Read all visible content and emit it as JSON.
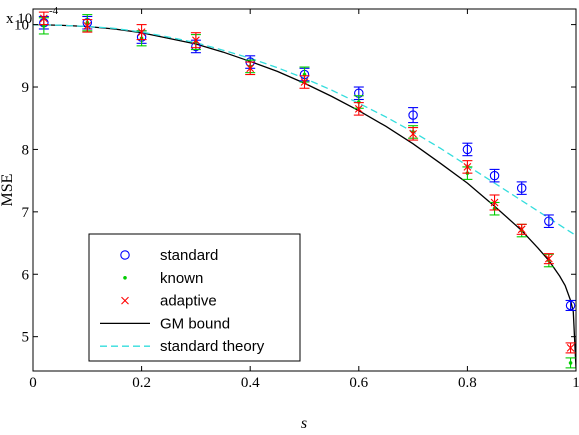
{
  "chart_data": {
    "type": "scatter",
    "xlabel": "s",
    "ylabel": "MSE",
    "y_scale_label": "x 10",
    "y_scale_exponent": "-4",
    "xlim": [
      0,
      1
    ],
    "ylim": [
      4.45,
      10.25
    ],
    "x_ticks": [
      0,
      0.2,
      0.4,
      0.6,
      0.8,
      1
    ],
    "x_tick_labels": [
      "0",
      "0.2",
      "0.4",
      "0.6",
      "0.8",
      "1"
    ],
    "y_ticks": [
      5,
      6,
      7,
      8,
      9,
      10
    ],
    "y_tick_labels": [
      "5",
      "6",
      "7",
      "8",
      "9",
      "10"
    ],
    "grid": false,
    "legend": {
      "position": "bottom-left"
    },
    "series": [
      {
        "name": "standard",
        "style": "marker-circle",
        "color": "#0000ff",
        "points": [
          {
            "x": 0.02,
            "y": 10.03,
            "err": 0.1
          },
          {
            "x": 0.1,
            "y": 10.03,
            "err": 0.1
          },
          {
            "x": 0.2,
            "y": 9.8,
            "err": 0.1
          },
          {
            "x": 0.3,
            "y": 9.65,
            "err": 0.1
          },
          {
            "x": 0.4,
            "y": 9.4,
            "err": 0.1
          },
          {
            "x": 0.5,
            "y": 9.2,
            "err": 0.1
          },
          {
            "x": 0.6,
            "y": 8.9,
            "err": 0.1
          },
          {
            "x": 0.7,
            "y": 8.55,
            "err": 0.12
          },
          {
            "x": 0.8,
            "y": 8.0,
            "err": 0.1
          },
          {
            "x": 0.85,
            "y": 7.58,
            "err": 0.1
          },
          {
            "x": 0.9,
            "y": 7.38,
            "err": 0.1
          },
          {
            "x": 0.95,
            "y": 6.85,
            "err": 0.1
          },
          {
            "x": 0.99,
            "y": 5.5,
            "err": 0.08
          }
        ]
      },
      {
        "name": "known",
        "style": "marker-dot",
        "color": "#00cc00",
        "points": [
          {
            "x": 0.02,
            "y": 9.98,
            "err": 0.13
          },
          {
            "x": 0.1,
            "y": 10.03,
            "err": 0.13
          },
          {
            "x": 0.2,
            "y": 9.78,
            "err": 0.12
          },
          {
            "x": 0.3,
            "y": 9.72,
            "err": 0.12
          },
          {
            "x": 0.4,
            "y": 9.33,
            "err": 0.1
          },
          {
            "x": 0.5,
            "y": 9.2,
            "err": 0.12
          },
          {
            "x": 0.6,
            "y": 8.76,
            "err": 0.1
          },
          {
            "x": 0.7,
            "y": 8.28,
            "err": 0.1
          },
          {
            "x": 0.8,
            "y": 7.62,
            "err": 0.1
          },
          {
            "x": 0.85,
            "y": 7.05,
            "err": 0.1
          },
          {
            "x": 0.9,
            "y": 6.7,
            "err": 0.1
          },
          {
            "x": 0.95,
            "y": 6.22,
            "err": 0.1
          },
          {
            "x": 0.99,
            "y": 4.58,
            "err": 0.08
          }
        ]
      },
      {
        "name": "adaptive",
        "style": "marker-x",
        "color": "#ff0000",
        "points": [
          {
            "x": 0.02,
            "y": 10.1,
            "err": 0.1
          },
          {
            "x": 0.1,
            "y": 9.98,
            "err": 0.1
          },
          {
            "x": 0.2,
            "y": 9.88,
            "err": 0.12
          },
          {
            "x": 0.3,
            "y": 9.75,
            "err": 0.12
          },
          {
            "x": 0.4,
            "y": 9.3,
            "err": 0.1
          },
          {
            "x": 0.5,
            "y": 9.08,
            "err": 0.1
          },
          {
            "x": 0.6,
            "y": 8.65,
            "err": 0.1
          },
          {
            "x": 0.7,
            "y": 8.25,
            "err": 0.1
          },
          {
            "x": 0.8,
            "y": 7.72,
            "err": 0.1
          },
          {
            "x": 0.85,
            "y": 7.15,
            "err": 0.12
          },
          {
            "x": 0.9,
            "y": 6.72,
            "err": 0.08
          },
          {
            "x": 0.95,
            "y": 6.25,
            "err": 0.08
          },
          {
            "x": 0.99,
            "y": 4.82,
            "err": 0.08
          }
        ]
      },
      {
        "name": "GM bound",
        "style": "line-solid",
        "color": "#000000",
        "x": [
          0,
          0.05,
          0.1,
          0.15,
          0.2,
          0.25,
          0.3,
          0.35,
          0.4,
          0.45,
          0.5,
          0.55,
          0.6,
          0.65,
          0.7,
          0.75,
          0.8,
          0.85,
          0.9,
          0.93,
          0.95,
          0.97,
          0.98,
          0.99,
          0.995,
          1.0
        ],
        "y": [
          10.0,
          9.99,
          9.97,
          9.93,
          9.87,
          9.78,
          9.69,
          9.56,
          9.41,
          9.25,
          9.06,
          8.85,
          8.62,
          8.37,
          8.09,
          7.78,
          7.46,
          7.09,
          6.7,
          6.42,
          6.22,
          5.97,
          5.82,
          5.58,
          5.4,
          4.5
        ]
      },
      {
        "name": "standard theory",
        "style": "line-dashed",
        "color": "#33dddd",
        "x": [
          0,
          0.05,
          0.1,
          0.15,
          0.2,
          0.25,
          0.3,
          0.35,
          0.4,
          0.45,
          0.5,
          0.55,
          0.6,
          0.65,
          0.7,
          0.75,
          0.8,
          0.85,
          0.9,
          0.95,
          1.0
        ],
        "y": [
          10.0,
          9.99,
          9.97,
          9.94,
          9.88,
          9.8,
          9.71,
          9.59,
          9.46,
          9.31,
          9.14,
          8.95,
          8.74,
          8.52,
          8.28,
          8.02,
          7.74,
          7.46,
          7.18,
          6.9,
          6.62
        ]
      }
    ]
  }
}
